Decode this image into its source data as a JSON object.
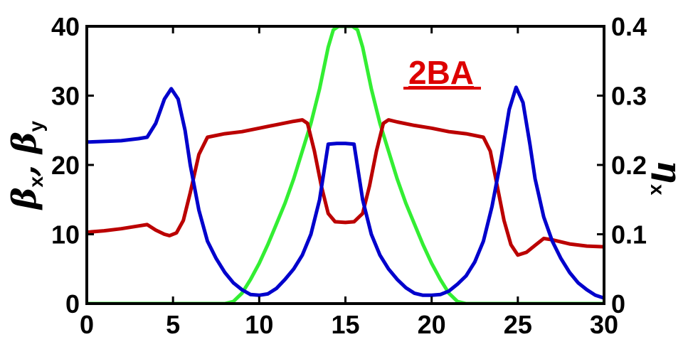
{
  "chart_data": {
    "type": "line",
    "annotation": "2BA",
    "colors": {
      "beta_x": "#0000cc",
      "beta_y": "#bb0000",
      "eta_x": "#33ee33",
      "annotation": "#dd0000",
      "axes": "#000000"
    },
    "x_axis": {
      "range": [
        0,
        30
      ],
      "ticks": [
        0,
        5,
        10,
        15,
        20,
        25,
        30
      ],
      "tick_labels": [
        "0",
        "5",
        "10",
        "15",
        "20",
        "25",
        "30"
      ]
    },
    "y_left": {
      "label_parts": [
        "β",
        "x",
        ", β",
        "y"
      ],
      "range": [
        0,
        40
      ],
      "ticks": [
        0,
        10,
        20,
        30,
        40
      ],
      "tick_labels": [
        "0",
        "10",
        "20",
        "30",
        "40"
      ]
    },
    "y_right": {
      "label_parts": [
        "η",
        "x"
      ],
      "range": [
        0,
        0.4
      ],
      "ticks": [
        0,
        0.1,
        0.2,
        0.3,
        0.4
      ],
      "tick_labels": [
        "0",
        "0.1",
        "0.2",
        "0.3",
        "0.4"
      ]
    },
    "grid": false,
    "series": [
      {
        "key": "beta_x",
        "axis": "left",
        "points": [
          [
            0,
            23.3
          ],
          [
            1,
            23.4
          ],
          [
            2,
            23.5
          ],
          [
            3,
            23.8
          ],
          [
            3.5,
            24
          ],
          [
            4,
            26
          ],
          [
            4.5,
            29.5
          ],
          [
            4.9,
            31
          ],
          [
            5.3,
            29.5
          ],
          [
            5.7,
            25
          ],
          [
            6,
            20
          ],
          [
            6.5,
            13.5
          ],
          [
            7,
            9
          ],
          [
            7.5,
            6.5
          ],
          [
            8,
            4.5
          ],
          [
            8.5,
            3
          ],
          [
            9,
            2
          ],
          [
            9.5,
            1.3
          ],
          [
            10,
            1.2
          ],
          [
            10.5,
            1.4
          ],
          [
            11,
            2.2
          ],
          [
            11.5,
            3.5
          ],
          [
            12,
            5
          ],
          [
            12.5,
            7
          ],
          [
            13,
            10
          ],
          [
            13.5,
            15
          ],
          [
            14,
            23
          ],
          [
            14.5,
            23.1
          ],
          [
            15,
            23.1
          ],
          [
            15.5,
            23
          ],
          [
            16,
            15
          ],
          [
            16.5,
            10
          ],
          [
            17,
            7
          ],
          [
            17.5,
            5
          ],
          [
            18,
            3.5
          ],
          [
            18.5,
            2.3
          ],
          [
            19,
            1.5
          ],
          [
            19.5,
            1.2
          ],
          [
            20,
            1.2
          ],
          [
            20.5,
            1.3
          ],
          [
            21,
            1.8
          ],
          [
            21.5,
            2.8
          ],
          [
            22,
            4
          ],
          [
            22.5,
            6
          ],
          [
            23,
            9
          ],
          [
            23.5,
            14
          ],
          [
            24,
            20.5
          ],
          [
            24.5,
            28
          ],
          [
            24.9,
            31.2
          ],
          [
            25.3,
            29
          ],
          [
            25.7,
            23
          ],
          [
            26,
            18
          ],
          [
            26.5,
            12.5
          ],
          [
            27,
            9
          ],
          [
            27.5,
            6.5
          ],
          [
            28,
            4.5
          ],
          [
            28.5,
            3
          ],
          [
            29,
            2
          ],
          [
            29.5,
            1.2
          ],
          [
            30,
            0.8
          ]
        ]
      },
      {
        "key": "beta_y",
        "axis": "left",
        "points": [
          [
            0,
            10.3
          ],
          [
            1,
            10.5
          ],
          [
            2,
            10.8
          ],
          [
            3,
            11.2
          ],
          [
            3.5,
            11.4
          ],
          [
            4,
            10.6
          ],
          [
            4.5,
            10
          ],
          [
            4.8,
            9.8
          ],
          [
            5.2,
            10.2
          ],
          [
            5.6,
            12
          ],
          [
            6,
            16
          ],
          [
            6.5,
            21.5
          ],
          [
            7,
            24
          ],
          [
            8,
            24.5
          ],
          [
            9,
            24.8
          ],
          [
            10,
            25.3
          ],
          [
            11,
            25.8
          ],
          [
            12,
            26.3
          ],
          [
            12.5,
            26.5
          ],
          [
            12.8,
            26
          ],
          [
            13.2,
            22
          ],
          [
            13.6,
            17
          ],
          [
            14,
            13
          ],
          [
            14.4,
            11.8
          ],
          [
            15,
            11.7
          ],
          [
            15.5,
            11.8
          ],
          [
            16,
            13
          ],
          [
            16.4,
            17
          ],
          [
            16.8,
            22
          ],
          [
            17.2,
            26
          ],
          [
            17.5,
            26.5
          ],
          [
            18,
            26.2
          ],
          [
            19,
            25.7
          ],
          [
            20,
            25.3
          ],
          [
            21,
            24.8
          ],
          [
            22,
            24.5
          ],
          [
            23,
            24
          ],
          [
            23.4,
            22
          ],
          [
            23.8,
            17
          ],
          [
            24.2,
            12
          ],
          [
            24.6,
            8.5
          ],
          [
            25,
            7
          ],
          [
            25.5,
            7.4
          ],
          [
            26,
            8.4
          ],
          [
            26.5,
            9.4
          ],
          [
            27,
            9.2
          ],
          [
            28,
            8.6
          ],
          [
            29,
            8.3
          ],
          [
            30,
            8.2
          ]
        ]
      },
      {
        "key": "eta_x",
        "axis": "right",
        "points": [
          [
            0,
            0
          ],
          [
            8,
            0
          ],
          [
            8.5,
            0.003
          ],
          [
            9,
            0.015
          ],
          [
            9.5,
            0.035
          ],
          [
            10,
            0.058
          ],
          [
            10.5,
            0.085
          ],
          [
            11,
            0.115
          ],
          [
            11.5,
            0.145
          ],
          [
            12,
            0.18
          ],
          [
            12.5,
            0.22
          ],
          [
            13,
            0.26
          ],
          [
            13.5,
            0.31
          ],
          [
            14,
            0.37
          ],
          [
            14.3,
            0.395
          ],
          [
            14.6,
            0.4
          ],
          [
            15.4,
            0.4
          ],
          [
            15.7,
            0.395
          ],
          [
            16,
            0.37
          ],
          [
            16.5,
            0.31
          ],
          [
            17,
            0.26
          ],
          [
            17.5,
            0.22
          ],
          [
            18,
            0.18
          ],
          [
            18.5,
            0.145
          ],
          [
            19,
            0.115
          ],
          [
            19.5,
            0.085
          ],
          [
            20,
            0.058
          ],
          [
            20.5,
            0.035
          ],
          [
            21,
            0.015
          ],
          [
            21.5,
            0.003
          ],
          [
            22,
            0
          ],
          [
            30,
            0
          ]
        ]
      }
    ]
  }
}
